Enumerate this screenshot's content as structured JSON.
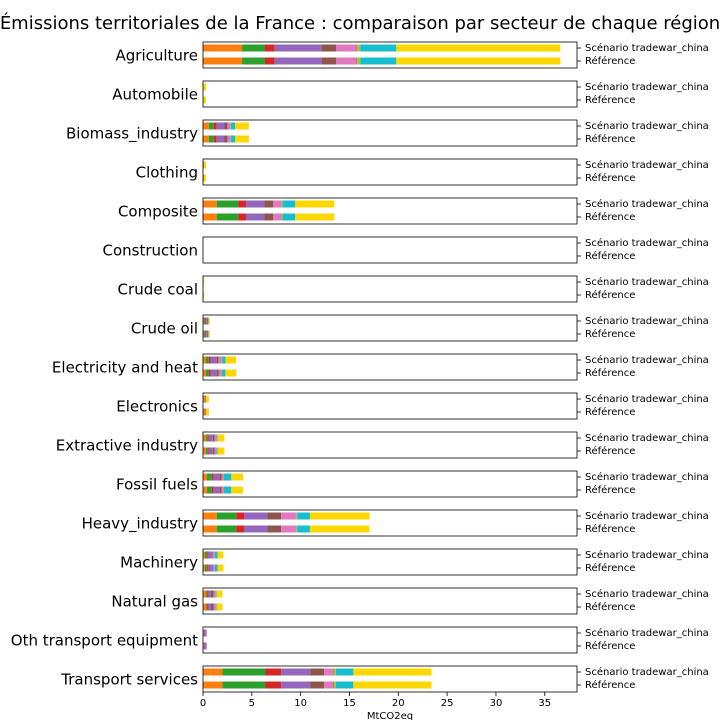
{
  "chart_data": {
    "type": "stacked-barh-panels",
    "title": "Émissions territoriales de la France : comparaison par secteur de chaque région",
    "xlabel": "MtCO2eq",
    "xlim": [
      0,
      38.3
    ],
    "xticks": [
      0,
      5,
      10,
      15,
      20,
      25,
      30,
      35
    ],
    "bar_labels": [
      "Scénario tradewar_china",
      "Référence"
    ],
    "colors": [
      "#ff7f0e",
      "#2ca02c",
      "#d62728",
      "#9467bd",
      "#8c564b",
      "#e377c2",
      "#7f7f7f",
      "#bcbd22",
      "#17becf",
      "#ffd700"
    ],
    "panels": [
      {
        "name": "Agriculture",
        "series": [
          {
            "values": [
              4.0,
              4.0
            ]
          },
          {
            "values": [
              2.35,
              2.35
            ]
          },
          {
            "values": [
              1.0,
              1.0
            ]
          },
          {
            "values": [
              4.8,
              4.8
            ]
          },
          {
            "values": [
              1.5,
              1.5
            ]
          },
          {
            "values": [
              2.05,
              2.05
            ]
          },
          {
            "values": [
              0.1,
              0.1
            ]
          },
          {
            "values": [
              0.3,
              0.3
            ]
          },
          {
            "values": [
              3.7,
              3.7
            ]
          },
          {
            "values": [
              16.8,
              16.8
            ]
          }
        ]
      },
      {
        "name": "Automobile",
        "series": [
          {
            "values": [
              0.05,
              0.05
            ]
          },
          {
            "values": [
              0,
              0
            ]
          },
          {
            "values": [
              0,
              0
            ]
          },
          {
            "values": [
              0,
              0
            ]
          },
          {
            "values": [
              0,
              0
            ]
          },
          {
            "values": [
              0,
              0
            ]
          },
          {
            "values": [
              0,
              0
            ]
          },
          {
            "values": [
              0,
              0
            ]
          },
          {
            "values": [
              0,
              0
            ]
          },
          {
            "values": [
              0.25,
              0.25
            ]
          }
        ]
      },
      {
        "name": "Biomass_industry",
        "series": [
          {
            "values": [
              0.6,
              0.6
            ]
          },
          {
            "values": [
              0.5,
              0.5
            ]
          },
          {
            "values": [
              0.3,
              0.3
            ]
          },
          {
            "values": [
              0.8,
              0.8
            ]
          },
          {
            "values": [
              0.3,
              0.3
            ]
          },
          {
            "values": [
              0.3,
              0.3
            ]
          },
          {
            "values": [
              0,
              0
            ]
          },
          {
            "values": [
              0.05,
              0.05
            ]
          },
          {
            "values": [
              0.45,
              0.45
            ]
          },
          {
            "values": [
              1.4,
              1.4
            ]
          }
        ]
      },
      {
        "name": "Clothing",
        "series": [
          {
            "values": [
              0.1,
              0.1
            ]
          },
          {
            "values": [
              0,
              0
            ]
          },
          {
            "values": [
              0,
              0
            ]
          },
          {
            "values": [
              0,
              0
            ]
          },
          {
            "values": [
              0,
              0
            ]
          },
          {
            "values": [
              0,
              0
            ]
          },
          {
            "values": [
              0,
              0
            ]
          },
          {
            "values": [
              0,
              0
            ]
          },
          {
            "values": [
              0,
              0
            ]
          },
          {
            "values": [
              0.2,
              0.2
            ]
          }
        ]
      },
      {
        "name": "Composite",
        "series": [
          {
            "values": [
              1.4,
              1.4
            ]
          },
          {
            "values": [
              2.2,
              2.2
            ]
          },
          {
            "values": [
              0.8,
              0.8
            ]
          },
          {
            "values": [
              1.9,
              1.9
            ]
          },
          {
            "values": [
              0.9,
              0.9
            ]
          },
          {
            "values": [
              0.8,
              0.8
            ]
          },
          {
            "values": [
              0.05,
              0.05
            ]
          },
          {
            "values": [
              0.1,
              0.1
            ]
          },
          {
            "values": [
              1.3,
              1.3
            ]
          },
          {
            "values": [
              4.0,
              4.0
            ]
          }
        ]
      },
      {
        "name": "Construction",
        "series": [
          {
            "values": [
              0,
              0
            ]
          },
          {
            "values": [
              0,
              0
            ]
          },
          {
            "values": [
              0,
              0
            ]
          },
          {
            "values": [
              0,
              0
            ]
          },
          {
            "values": [
              0,
              0
            ]
          },
          {
            "values": [
              0,
              0
            ]
          },
          {
            "values": [
              0,
              0
            ]
          },
          {
            "values": [
              0,
              0
            ]
          },
          {
            "values": [
              0,
              0
            ]
          },
          {
            "values": [
              0,
              0
            ]
          }
        ]
      },
      {
        "name": "Crude coal",
        "series": [
          {
            "values": [
              0,
              0
            ]
          },
          {
            "values": [
              0,
              0
            ]
          },
          {
            "values": [
              0,
              0
            ]
          },
          {
            "values": [
              0,
              0
            ]
          },
          {
            "values": [
              0,
              0
            ]
          },
          {
            "values": [
              0,
              0
            ]
          },
          {
            "values": [
              0,
              0
            ]
          },
          {
            "values": [
              0,
              0
            ]
          },
          {
            "values": [
              0,
              0
            ]
          },
          {
            "values": [
              0.1,
              0.1
            ]
          }
        ]
      },
      {
        "name": "Crude oil",
        "series": [
          {
            "values": [
              0.1,
              0.1
            ]
          },
          {
            "values": [
              0.1,
              0.1
            ]
          },
          {
            "values": [
              0.05,
              0.05
            ]
          },
          {
            "values": [
              0.15,
              0.15
            ]
          },
          {
            "values": [
              0.1,
              0.1
            ]
          },
          {
            "values": [
              0.05,
              0.05
            ]
          },
          {
            "values": [
              0,
              0
            ]
          },
          {
            "values": [
              0,
              0
            ]
          },
          {
            "values": [
              0.05,
              0.05
            ]
          },
          {
            "values": [
              0.1,
              0.1
            ]
          }
        ]
      },
      {
        "name": "Electricity and heat",
        "series": [
          {
            "values": [
              0.3,
              0.3
            ]
          },
          {
            "values": [
              0.3,
              0.3
            ]
          },
          {
            "values": [
              0.2,
              0.2
            ]
          },
          {
            "values": [
              0.6,
              0.6
            ]
          },
          {
            "values": [
              0.2,
              0.2
            ]
          },
          {
            "values": [
              0.3,
              0.3
            ]
          },
          {
            "values": [
              0,
              0
            ]
          },
          {
            "values": [
              0.05,
              0.05
            ]
          },
          {
            "values": [
              0.35,
              0.35
            ]
          },
          {
            "values": [
              1.1,
              1.1
            ]
          }
        ]
      },
      {
        "name": "Electronics",
        "series": [
          {
            "values": [
              0.2,
              0.2
            ]
          },
          {
            "values": [
              0,
              0
            ]
          },
          {
            "values": [
              0,
              0
            ]
          },
          {
            "values": [
              0.1,
              0.1
            ]
          },
          {
            "values": [
              0,
              0
            ]
          },
          {
            "values": [
              0,
              0
            ]
          },
          {
            "values": [
              0,
              0
            ]
          },
          {
            "values": [
              0,
              0
            ]
          },
          {
            "values": [
              0,
              0
            ]
          },
          {
            "values": [
              0.3,
              0.3
            ]
          }
        ]
      },
      {
        "name": "Extractive industry",
        "series": [
          {
            "values": [
              0.3,
              0.3
            ]
          },
          {
            "values": [
              0.2,
              0.2
            ]
          },
          {
            "values": [
              0.1,
              0.1
            ]
          },
          {
            "values": [
              0.4,
              0.4
            ]
          },
          {
            "values": [
              0.2,
              0.2
            ]
          },
          {
            "values": [
              0.2,
              0.2
            ]
          },
          {
            "values": [
              0,
              0
            ]
          },
          {
            "values": [
              0,
              0
            ]
          },
          {
            "values": [
              0.1,
              0.1
            ]
          },
          {
            "values": [
              0.7,
              0.7
            ]
          }
        ]
      },
      {
        "name": "Fossil fuels",
        "series": [
          {
            "values": [
              0.4,
              0.4
            ]
          },
          {
            "values": [
              0.5,
              0.5
            ]
          },
          {
            "values": [
              0.2,
              0.2
            ]
          },
          {
            "values": [
              0.6,
              0.6
            ]
          },
          {
            "values": [
              0.2,
              0.2
            ]
          },
          {
            "values": [
              0.2,
              0.2
            ]
          },
          {
            "values": [
              0,
              0
            ]
          },
          {
            "values": [
              0.05,
              0.05
            ]
          },
          {
            "values": [
              0.75,
              0.75
            ]
          },
          {
            "values": [
              1.2,
              1.2
            ]
          }
        ]
      },
      {
        "name": "Heavy_industry",
        "series": [
          {
            "values": [
              1.4,
              1.4
            ]
          },
          {
            "values": [
              2.0,
              2.0
            ]
          },
          {
            "values": [
              0.8,
              0.8
            ]
          },
          {
            "values": [
              2.4,
              2.4
            ]
          },
          {
            "values": [
              1.4,
              1.4
            ]
          },
          {
            "values": [
              1.5,
              1.5
            ]
          },
          {
            "values": [
              0.05,
              0.05
            ]
          },
          {
            "values": [
              0.1,
              0.1
            ]
          },
          {
            "values": [
              1.3,
              1.3
            ]
          },
          {
            "values": [
              6.1,
              6.1
            ]
          }
        ]
      },
      {
        "name": "Machinery",
        "series": [
          {
            "values": [
              0.2,
              0.2
            ]
          },
          {
            "values": [
              0.2,
              0.2
            ]
          },
          {
            "values": [
              0.1,
              0.1
            ]
          },
          {
            "values": [
              0.4,
              0.4
            ]
          },
          {
            "values": [
              0.1,
              0.1
            ]
          },
          {
            "values": [
              0.2,
              0.2
            ]
          },
          {
            "values": [
              0,
              0
            ]
          },
          {
            "values": [
              0,
              0
            ]
          },
          {
            "values": [
              0.3,
              0.3
            ]
          },
          {
            "values": [
              0.6,
              0.6
            ]
          }
        ]
      },
      {
        "name": "Natural gas",
        "series": [
          {
            "values": [
              0.3,
              0.3
            ]
          },
          {
            "values": [
              0.1,
              0.1
            ]
          },
          {
            "values": [
              0.1,
              0.1
            ]
          },
          {
            "values": [
              0.3,
              0.3
            ]
          },
          {
            "values": [
              0.3,
              0.3
            ]
          },
          {
            "values": [
              0.2,
              0.2
            ]
          },
          {
            "values": [
              0,
              0
            ]
          },
          {
            "values": [
              0,
              0
            ]
          },
          {
            "values": [
              0.1,
              0.1
            ]
          },
          {
            "values": [
              0.6,
              0.6
            ]
          }
        ]
      },
      {
        "name": "Oth transport equipment",
        "series": [
          {
            "values": [
              0.1,
              0.1
            ]
          },
          {
            "values": [
              0,
              0
            ]
          },
          {
            "values": [
              0,
              0
            ]
          },
          {
            "values": [
              0.2,
              0.2
            ]
          },
          {
            "values": [
              0,
              0
            ]
          },
          {
            "values": [
              0.1,
              0.1
            ]
          },
          {
            "values": [
              0,
              0
            ]
          },
          {
            "values": [
              0,
              0
            ]
          },
          {
            "values": [
              0,
              0
            ]
          },
          {
            "values": [
              0,
              0
            ]
          }
        ]
      },
      {
        "name": "Transport services",
        "series": [
          {
            "values": [
              2.0,
              2.0
            ]
          },
          {
            "values": [
              4.4,
              4.4
            ]
          },
          {
            "values": [
              1.6,
              1.6
            ]
          },
          {
            "values": [
              3.0,
              3.0
            ]
          },
          {
            "values": [
              1.4,
              1.4
            ]
          },
          {
            "values": [
              0.9,
              0.9
            ]
          },
          {
            "values": [
              0.1,
              0.1
            ]
          },
          {
            "values": [
              0.2,
              0.2
            ]
          },
          {
            "values": [
              1.8,
              1.8
            ]
          },
          {
            "values": [
              8.0,
              8.0
            ]
          }
        ]
      }
    ]
  }
}
